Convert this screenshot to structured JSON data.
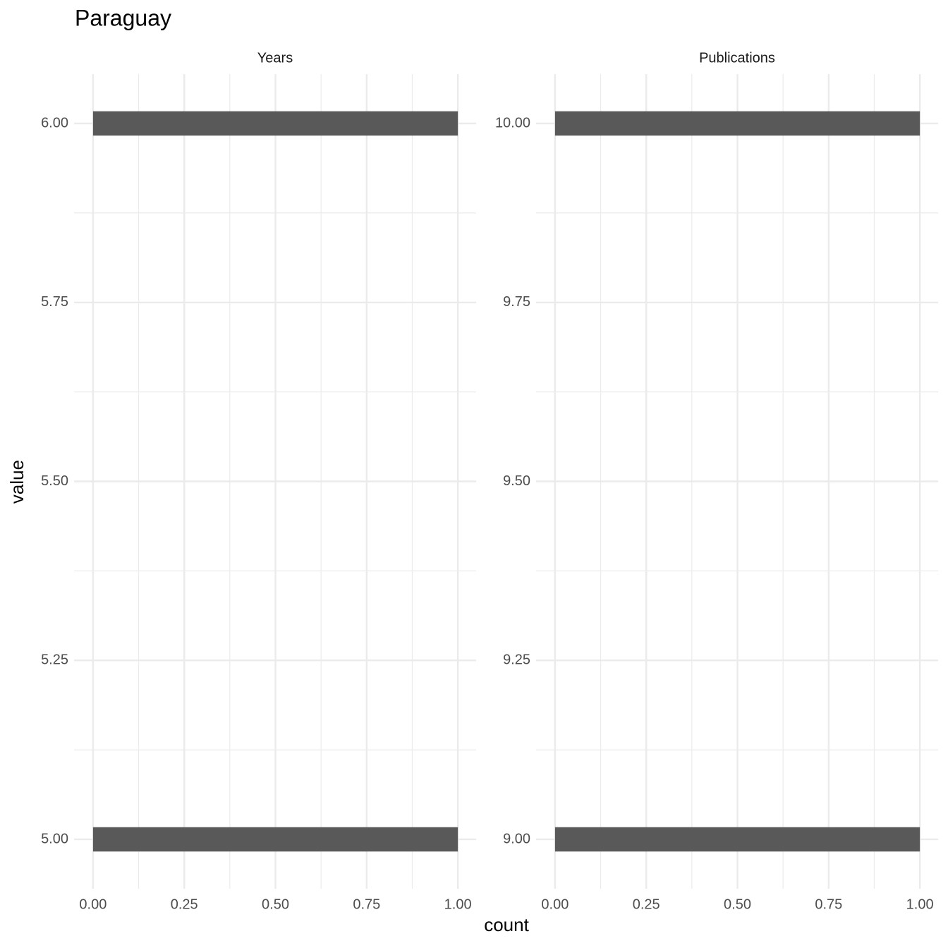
{
  "chart_data": {
    "type": "histogram",
    "orientation": "horizontal",
    "title": "Paraguay",
    "xlabel": "count",
    "ylabel": "value",
    "color": "#595959",
    "grid": true,
    "xlim": [
      -0.052,
      1.05
    ],
    "xticks": [
      {
        "value": 0,
        "label": "0.00"
      },
      {
        "value": 0.25,
        "label": "0.25"
      },
      {
        "value": 0.5,
        "label": "0.50"
      },
      {
        "value": 0.75,
        "label": "0.75"
      },
      {
        "value": 1,
        "label": "1.00"
      }
    ],
    "panels": [
      {
        "title": "Years",
        "bins": [
          4.983,
          5.017,
          5.983,
          6.017
        ],
        "values": [
          1,
          0,
          1
        ],
        "ylim": [
          4.931,
          6.069
        ],
        "yticks": [
          {
            "value": 5,
            "label": "5.00"
          },
          {
            "value": 5.25,
            "label": "5.25"
          },
          {
            "value": 5.5,
            "label": "5.50"
          },
          {
            "value": 5.75,
            "label": "5.75"
          },
          {
            "value": 6,
            "label": "6.00"
          }
        ]
      },
      {
        "title": "Publications",
        "bins": [
          8.983,
          9.017,
          9.983,
          10.017
        ],
        "values": [
          1,
          0,
          1
        ],
        "ylim": [
          8.931,
          10.069
        ],
        "yticks": [
          {
            "value": 9,
            "label": "9.00"
          },
          {
            "value": 9.25,
            "label": "9.25"
          },
          {
            "value": 9.5,
            "label": "9.50"
          },
          {
            "value": 9.75,
            "label": "9.75"
          },
          {
            "value": 10,
            "label": "10.00"
          }
        ]
      }
    ]
  }
}
